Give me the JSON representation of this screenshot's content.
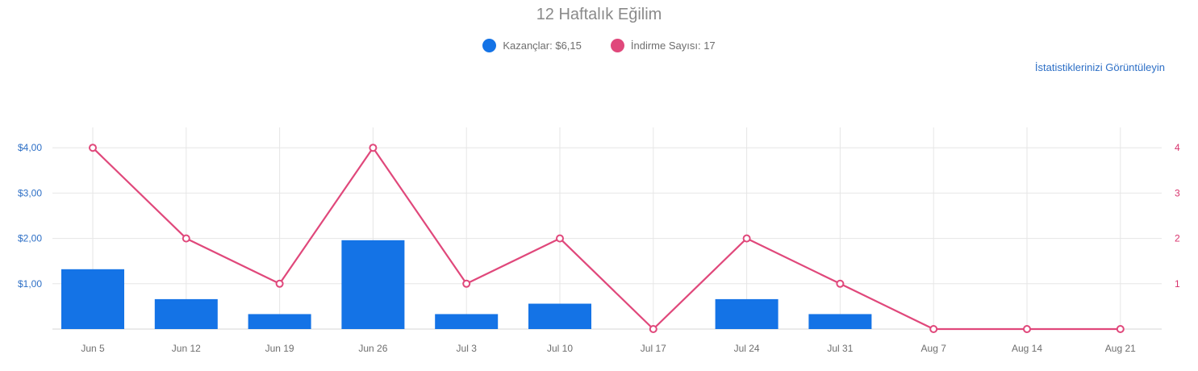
{
  "chart_data": {
    "type": "bar",
    "title": "12 Haftalık Eğilim",
    "categories": [
      "Jun 5",
      "Jun 12",
      "Jun 19",
      "Jun 26",
      "Jul 3",
      "Jul 10",
      "Jul 17",
      "Jul 24",
      "Jul 31",
      "Aug 7",
      "Aug 14",
      "Aug 21"
    ],
    "series": [
      {
        "name": "Kazançlar",
        "type": "bar",
        "axis": "left",
        "color": "#1473e6",
        "values": [
          1.32,
          0.66,
          0.33,
          1.96,
          0.33,
          0.56,
          0,
          0.66,
          0.33,
          0,
          0,
          0
        ]
      },
      {
        "name": "İndirme Sayısı",
        "type": "line",
        "axis": "right",
        "color": "#e0487b",
        "values": [
          4,
          2,
          1,
          4,
          1,
          2,
          0,
          2,
          1,
          0,
          0,
          0
        ]
      }
    ],
    "y_left": {
      "ticks": [
        "$1,00",
        "$2,00",
        "$3,00",
        "$4,00"
      ],
      "tick_values": [
        1,
        2,
        3,
        4
      ],
      "ylim": [
        0,
        4
      ]
    },
    "y_right": {
      "ticks": [
        "1",
        "2",
        "3",
        "4"
      ],
      "tick_values": [
        1,
        2,
        3,
        4
      ],
      "ylim": [
        0,
        4
      ]
    },
    "grid": true,
    "legend": "top-center"
  },
  "legend": {
    "earnings_label": "Kazançlar: $6,15",
    "downloads_label": "İndirme Sayısı: 17",
    "earnings_color": "#1473e6",
    "downloads_color": "#e0487b"
  },
  "link": {
    "label": "İstatistiklerinizi Görüntüleyin"
  }
}
